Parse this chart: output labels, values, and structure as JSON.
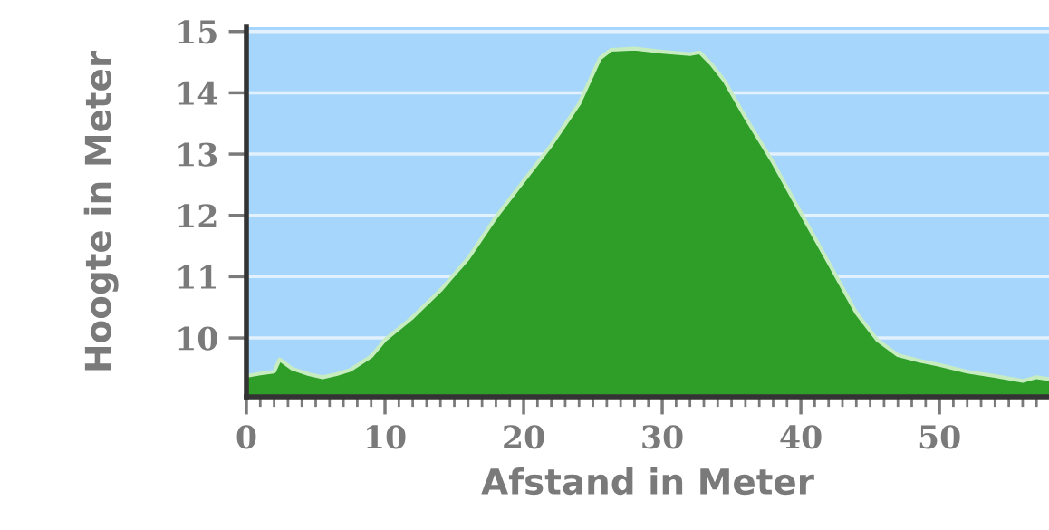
{
  "chart_data": {
    "type": "area",
    "xlabel": "Afstand in Meter",
    "ylabel": "Hoogte in Meter",
    "x": [
      0,
      1,
      2,
      2.4,
      3.3,
      4.5,
      5.5,
      6.5,
      7.5,
      9,
      10,
      12,
      14,
      16,
      18,
      20,
      22,
      24,
      25.5,
      26.3,
      28,
      30,
      32,
      32.7,
      33.5,
      34.5,
      36,
      38,
      40,
      42,
      44,
      45.5,
      47,
      48.5,
      50,
      52,
      54,
      56,
      57,
      57.9
    ],
    "series": [
      {
        "color": "#2e9e28",
        "values": [
          9.38,
          9.42,
          9.45,
          9.65,
          9.5,
          9.41,
          9.36,
          9.41,
          9.48,
          9.7,
          9.97,
          10.34,
          10.78,
          11.3,
          11.97,
          12.56,
          13.15,
          13.82,
          14.56,
          14.7,
          14.72,
          14.67,
          14.63,
          14.66,
          14.48,
          14.19,
          13.6,
          12.86,
          12.04,
          11.23,
          10.41,
          9.97,
          9.72,
          9.63,
          9.56,
          9.45,
          9.38,
          9.3,
          9.36,
          9.33
        ]
      }
    ],
    "xlim": [
      0,
      57.9
    ],
    "ylim": [
      9.04,
      15.07
    ],
    "xticks": [
      0,
      {
        "value": 1,
        "label": null
      },
      {
        "value": 2,
        "label": null
      },
      {
        "value": 3,
        "label": null
      },
      {
        "value": 4,
        "label": null
      },
      {
        "value": 5,
        "label": null
      },
      {
        "value": 6,
        "label": null
      },
      {
        "value": 7,
        "label": null
      },
      {
        "value": 8,
        "label": null
      },
      {
        "value": 9,
        "label": null
      },
      10,
      {
        "value": 11,
        "label": null
      },
      {
        "value": 12,
        "label": null
      },
      {
        "value": 13,
        "label": null
      },
      {
        "value": 14,
        "label": null
      },
      {
        "value": 15,
        "label": null
      },
      {
        "value": 16,
        "label": null
      },
      {
        "value": 17,
        "label": null
      },
      {
        "value": 18,
        "label": null
      },
      {
        "value": 19,
        "label": null
      },
      20,
      {
        "value": 21,
        "label": null
      },
      {
        "value": 22,
        "label": null
      },
      {
        "value": 23,
        "label": null
      },
      {
        "value": 24,
        "label": null
      },
      {
        "value": 25,
        "label": null
      },
      {
        "value": 26,
        "label": null
      },
      {
        "value": 27,
        "label": null
      },
      {
        "value": 28,
        "label": null
      },
      {
        "value": 29,
        "label": null
      },
      30,
      {
        "value": 31,
        "label": null
      },
      {
        "value": 32,
        "label": null
      },
      {
        "value": 33,
        "label": null
      },
      {
        "value": 34,
        "label": null
      },
      {
        "value": 35,
        "label": null
      },
      {
        "value": 36,
        "label": null
      },
      {
        "value": 37,
        "label": null
      },
      {
        "value": 38,
        "label": null
      },
      {
        "value": 39,
        "label": null
      },
      40,
      {
        "value": 41,
        "label": null
      },
      {
        "value": 42,
        "label": null
      },
      {
        "value": 43,
        "label": null
      },
      {
        "value": 44,
        "label": null
      },
      {
        "value": 45,
        "label": null
      },
      {
        "value": 46,
        "label": null
      },
      {
        "value": 47,
        "label": null
      },
      {
        "value": 48,
        "label": null
      },
      {
        "value": 49,
        "label": null
      },
      50,
      {
        "value": 51,
        "label": null
      },
      {
        "value": 52,
        "label": null
      },
      {
        "value": 53,
        "label": null
      },
      {
        "value": 54,
        "label": null
      },
      {
        "value": 55,
        "label": null
      },
      {
        "value": 56,
        "label": null
      },
      {
        "value": 57,
        "label": null
      }
    ],
    "yticks": [
      10,
      11,
      12,
      13,
      14,
      15
    ],
    "grid": "y"
  }
}
